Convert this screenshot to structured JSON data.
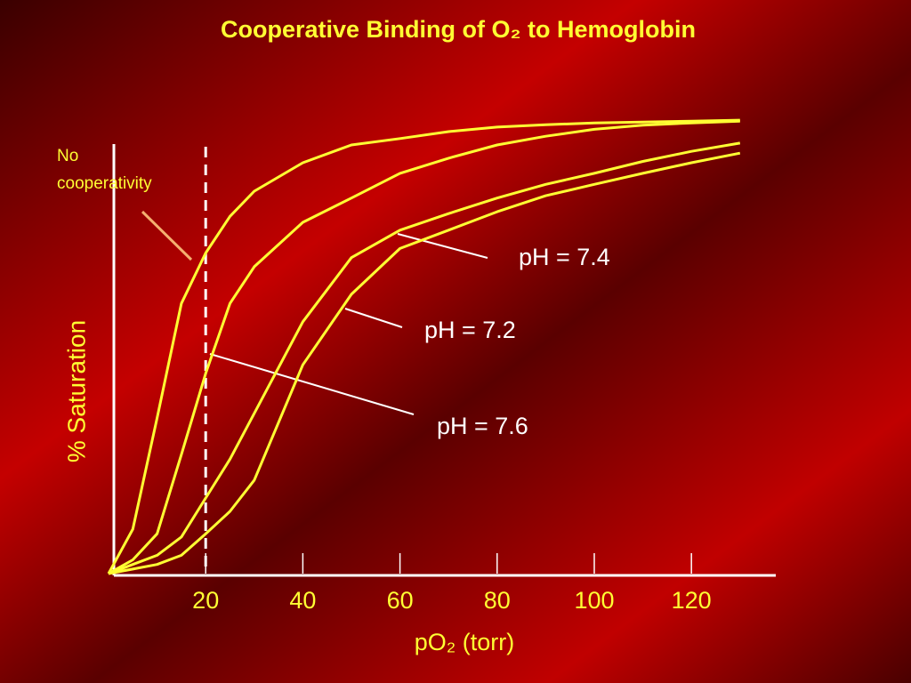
{
  "chart_data": {
    "type": "line",
    "title": "Cooperative Binding of O₂ to Hemoglobin",
    "x_label": "pO₂ (torr)",
    "y_label": "% Saturation",
    "x": [
      0,
      5,
      10,
      15,
      20,
      25,
      30,
      40,
      50,
      60,
      70,
      80,
      90,
      100,
      110,
      120,
      130
    ],
    "series": [
      {
        "name": "No cooperativity",
        "color": "#ffff33",
        "values": [
          0,
          9.7,
          34,
          59,
          70,
          78,
          83.5,
          89.7,
          93.6,
          95,
          96.5,
          97.5,
          98,
          98.4,
          98.6,
          98.8,
          99
        ]
      },
      {
        "name": "pH = 7.6",
        "color": "#ffff33",
        "values": [
          0,
          3,
          8.7,
          26,
          43.7,
          59,
          67,
          76.7,
          82,
          87.4,
          90.7,
          93.6,
          95.5,
          97,
          97.9,
          98.4,
          98.8
        ]
      },
      {
        "name": "pH = 7.4",
        "color": "#ffff33",
        "values": [
          0,
          2,
          4,
          8,
          16.5,
          25,
          35,
          55,
          69,
          75,
          78.6,
          82,
          85,
          87.4,
          90,
          92.2,
          94
        ]
      },
      {
        "name": "pH = 7.2",
        "color": "#ffff33",
        "values": [
          0,
          1,
          2,
          4,
          8.7,
          13.6,
          20.4,
          45.6,
          61,
          71,
          75,
          79,
          82.5,
          85,
          87.4,
          89.7,
          91.8
        ]
      }
    ],
    "xlim": [
      0,
      137
    ],
    "ylim": [
      0,
      100
    ],
    "xticks": [
      20,
      40,
      60,
      80,
      100,
      120
    ],
    "reference_x": 20
  }
}
